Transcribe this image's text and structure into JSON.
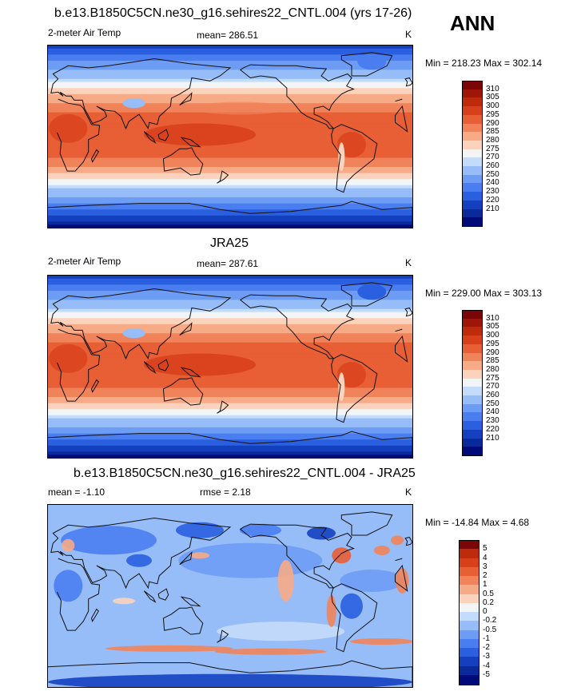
{
  "season": "ANN",
  "units": "K",
  "colors": {
    "temp": [
      "#000a78",
      "#0a2a9c",
      "#1440c0",
      "#2a5fe0",
      "#4a7ef0",
      "#6d9cf5",
      "#97bdf8",
      "#c4dcfb",
      "#f2f4f6",
      "#fbd3bd",
      "#f7aa86",
      "#f1835a",
      "#e85e35",
      "#d8401c",
      "#bd2a0c",
      "#9d1608",
      "#7a0606"
    ],
    "diff": [
      "#000a78",
      "#0a2a9c",
      "#1440c0",
      "#2a5fe0",
      "#4a7ef0",
      "#6d9cf5",
      "#97bdf8",
      "#c4dcfb",
      "#f2f4f6",
      "#fbd3bd",
      "#f7aa86",
      "#f1835a",
      "#e85e35",
      "#d8401c",
      "#bd2a0c",
      "#7a0606"
    ]
  },
  "panels": [
    {
      "title": "b.e13.B1850C5CN.ne30_g16.sehires22_CNTL.004 (yrs 17-26)",
      "variable": "2-meter Air Temp",
      "stat_text": "mean= 286.51",
      "minmax": "Min = 218.23 Max = 302.14"
    },
    {
      "title": "JRA25",
      "variable": "2-meter Air Temp",
      "stat_text": "mean= 287.61",
      "minmax": "Min = 229.00 Max = 303.13"
    },
    {
      "title": "b.e13.B1850C5CN.ne30_g16.sehires22_CNTL.004 - JRA25",
      "stat_text": "mean =  -1.10",
      "rmse_text": "rmse =   2.18",
      "minmax": "Min = -14.84 Max =   4.68"
    }
  ],
  "chart_data": [
    {
      "type": "heatmap",
      "title": "b.e13.B1850C5CN.ne30_g16.sehires22_CNTL.004 (yrs 17-26)",
      "variable": "2-meter Air Temp",
      "units": "K",
      "mean": 286.51,
      "min": 218.23,
      "max": 302.14,
      "colorbar_levels": [
        210,
        220,
        230,
        240,
        250,
        260,
        270,
        275,
        280,
        285,
        290,
        295,
        300,
        305,
        310
      ],
      "colorbar_labels": [
        "310",
        "305",
        "300",
        "295",
        "290",
        "285",
        "280",
        "275",
        "270",
        "260",
        "250",
        "240",
        "230",
        "220",
        "210"
      ]
    },
    {
      "type": "heatmap",
      "title": "JRA25",
      "variable": "2-meter Air Temp",
      "units": "K",
      "mean": 287.61,
      "min": 229.0,
      "max": 303.13,
      "colorbar_levels": [
        210,
        220,
        230,
        240,
        250,
        260,
        270,
        275,
        280,
        285,
        290,
        295,
        300,
        305,
        310
      ],
      "colorbar_labels": [
        "310",
        "305",
        "300",
        "295",
        "290",
        "285",
        "280",
        "275",
        "270",
        "260",
        "250",
        "240",
        "230",
        "220",
        "210"
      ]
    },
    {
      "type": "heatmap",
      "title": "b.e13.B1850C5CN.ne30_g16.sehires22_CNTL.004 - JRA25",
      "units": "K",
      "mean": -1.1,
      "rmse": 2.18,
      "min": -14.84,
      "max": 4.68,
      "colorbar_levels": [
        -5,
        -4,
        -3,
        -2,
        -1,
        -0.5,
        -0.2,
        0,
        0.2,
        0.5,
        1,
        2,
        3,
        4,
        5
      ],
      "colorbar_labels": [
        "5",
        "4",
        "3",
        "2",
        "1",
        "0.5",
        "0.2",
        "0",
        "-0.2",
        "-0.5",
        "-1",
        "-2",
        "-3",
        "-4",
        "-5"
      ]
    }
  ]
}
